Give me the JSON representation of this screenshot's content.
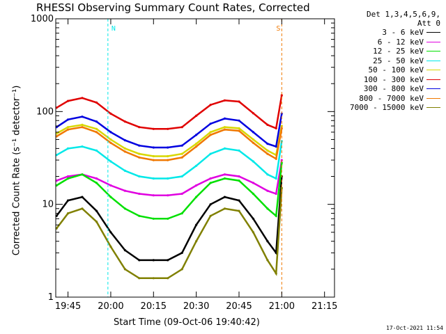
{
  "chart_data": {
    "type": "line",
    "title": "RHESSI Observing Summary Count Rates, Corrected",
    "xlabel": "Start Time (09-Oct-06 19:40:42)",
    "ylabel": "Corrected Count Rate (s⁻¹ detector⁻¹)",
    "xlim": [
      "19:40:42",
      "21:18:30"
    ],
    "ylim": [
      1,
      1000
    ],
    "yscale": "log",
    "x_ticks": [
      "19:45",
      "20:00",
      "20:15",
      "20:30",
      "20:45",
      "21:00",
      "21:15"
    ],
    "y_ticks": [
      "1",
      "10",
      "100",
      "1000"
    ],
    "legend": {
      "header": [
        "Det 1,3,4,5,6,9,",
        "Att 0"
      ],
      "position": "right"
    },
    "series": [
      {
        "name": "3 - 6 keV",
        "color": "#000000",
        "x": [
          "19:41",
          "19:45",
          "19:50",
          "19:55",
          "20:00",
          "20:05",
          "20:10",
          "20:15",
          "20:20",
          "20:25",
          "20:30",
          "20:35",
          "20:40",
          "20:45",
          "20:50",
          "20:55",
          "20:58",
          "21:00"
        ],
        "y": [
          7.5,
          11,
          12,
          8.5,
          5,
          3.2,
          2.5,
          2.5,
          2.5,
          3,
          6,
          10,
          12,
          11,
          7,
          4,
          3,
          20
        ]
      },
      {
        "name": "6 - 12 keV",
        "color": "#e000e0",
        "x": [
          "19:41",
          "19:45",
          "19:50",
          "19:55",
          "20:00",
          "20:05",
          "20:10",
          "20:15",
          "20:20",
          "20:25",
          "20:30",
          "20:35",
          "20:40",
          "20:45",
          "20:50",
          "20:55",
          "20:58",
          "21:00"
        ],
        "y": [
          18,
          20,
          21,
          19,
          16,
          14,
          13,
          12.5,
          12.5,
          13,
          16,
          19,
          21,
          20,
          17,
          14,
          13,
          30
        ]
      },
      {
        "name": "12 - 25 keV",
        "color": "#00e000",
        "x": [
          "19:41",
          "19:45",
          "19:50",
          "19:55",
          "20:00",
          "20:05",
          "20:10",
          "20:15",
          "20:20",
          "20:25",
          "20:30",
          "20:35",
          "20:40",
          "20:45",
          "20:50",
          "20:55",
          "20:58",
          "21:00"
        ],
        "y": [
          16,
          19,
          21,
          17,
          12,
          9,
          7.5,
          7,
          7,
          8,
          12,
          17,
          19,
          18,
          13,
          9,
          7.5,
          28
        ]
      },
      {
        "name": "25 - 50 keV",
        "color": "#00e8e8",
        "x": [
          "19:41",
          "19:45",
          "19:50",
          "19:55",
          "20:00",
          "20:05",
          "20:10",
          "20:15",
          "20:20",
          "20:25",
          "20:30",
          "20:35",
          "20:40",
          "20:45",
          "20:50",
          "20:55",
          "20:58",
          "21:00"
        ],
        "y": [
          34,
          40,
          42,
          38,
          29,
          23,
          20,
          19,
          19,
          20,
          26,
          35,
          40,
          38,
          29,
          21,
          19,
          48
        ]
      },
      {
        "name": "50 - 100 keV",
        "color": "#d8d800",
        "x": [
          "19:41",
          "19:45",
          "19:50",
          "19:55",
          "20:00",
          "20:05",
          "20:10",
          "20:15",
          "20:20",
          "20:25",
          "20:30",
          "20:35",
          "20:40",
          "20:45",
          "20:50",
          "20:55",
          "20:58",
          "21:00"
        ],
        "y": [
          58,
          68,
          72,
          65,
          50,
          40,
          35,
          33,
          33,
          35,
          45,
          60,
          68,
          66,
          50,
          38,
          34,
          70
        ]
      },
      {
        "name": "100 - 300 keV",
        "color": "#e00000",
        "x": [
          "19:41",
          "19:45",
          "19:50",
          "19:55",
          "20:00",
          "20:05",
          "20:10",
          "20:15",
          "20:20",
          "20:25",
          "20:30",
          "20:35",
          "20:40",
          "20:45",
          "20:50",
          "20:55",
          "20:58",
          "21:00"
        ],
        "y": [
          110,
          130,
          140,
          125,
          95,
          78,
          68,
          65,
          65,
          68,
          90,
          118,
          132,
          128,
          96,
          72,
          66,
          150
        ]
      },
      {
        "name": "300 - 800 keV",
        "color": "#0000e0",
        "x": [
          "19:41",
          "19:45",
          "19:50",
          "19:55",
          "20:00",
          "20:05",
          "20:10",
          "20:15",
          "20:20",
          "20:25",
          "20:30",
          "20:35",
          "20:40",
          "20:45",
          "20:50",
          "20:55",
          "20:58",
          "21:00"
        ],
        "y": [
          68,
          82,
          88,
          78,
          60,
          49,
          43,
          41,
          41,
          43,
          56,
          74,
          84,
          80,
          60,
          45,
          42,
          95
        ]
      },
      {
        "name": "800 - 7000 keV",
        "color": "#f07800",
        "x": [
          "19:41",
          "19:45",
          "19:50",
          "19:55",
          "20:00",
          "20:05",
          "20:10",
          "20:15",
          "20:20",
          "20:25",
          "20:30",
          "20:35",
          "20:40",
          "20:45",
          "20:50",
          "20:55",
          "20:58",
          "21:00"
        ],
        "y": [
          54,
          64,
          68,
          60,
          46,
          37,
          32,
          30,
          30,
          32,
          42,
          56,
          64,
          62,
          46,
          35,
          31,
          66
        ]
      },
      {
        "name": "7000 - 15000 keV",
        "color": "#808000",
        "x": [
          "19:41",
          "19:45",
          "19:50",
          "19:55",
          "20:00",
          "20:05",
          "20:10",
          "20:15",
          "20:20",
          "20:25",
          "20:30",
          "20:35",
          "20:40",
          "20:45",
          "20:50",
          "20:55",
          "20:58",
          "21:00"
        ],
        "y": [
          5.5,
          8,
          9,
          6.5,
          3.5,
          2,
          1.6,
          1.6,
          1.6,
          2,
          4,
          7.5,
          9,
          8.5,
          5,
          2.5,
          1.8,
          15
        ]
      }
    ],
    "annotations": [
      {
        "label": "N",
        "x": "19:59",
        "color": "#00e8e8"
      },
      {
        "label": "S",
        "x": "21:00",
        "color": "#f07800"
      }
    ],
    "grid": false
  },
  "colors": {
    "cyan": "#00e8e8",
    "orange": "#f07800"
  },
  "timestamp": "17-Oct-2021 11:54"
}
